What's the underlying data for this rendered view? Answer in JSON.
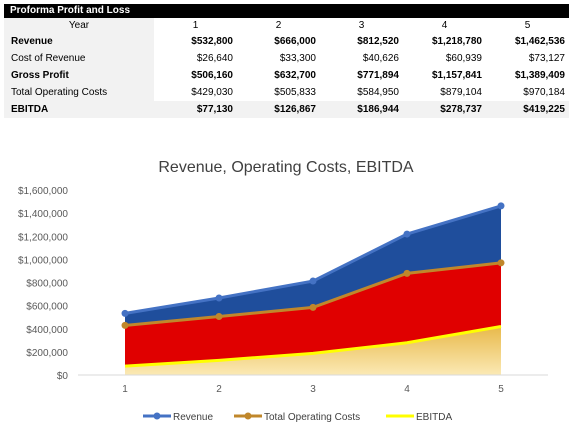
{
  "table": {
    "title": "Proforma Profit and Loss",
    "year_label": "Year",
    "years": [
      "1",
      "2",
      "3",
      "4",
      "5"
    ],
    "rows": [
      {
        "label": "Revenue",
        "bold": true,
        "values": [
          "$532,800",
          "$666,000",
          "$812,520",
          "$1,218,780",
          "$1,462,536"
        ]
      },
      {
        "label": "Cost of Revenue",
        "bold": false,
        "values": [
          "$26,640",
          "$33,300",
          "$40,626",
          "$60,939",
          "$73,127"
        ]
      },
      {
        "label": "Gross Profit",
        "bold": true,
        "values": [
          "$506,160",
          "$632,700",
          "$771,894",
          "$1,157,841",
          "$1,389,409"
        ]
      },
      {
        "label": "Total Operating Costs",
        "bold": false,
        "values": [
          "$429,030",
          "$505,833",
          "$584,950",
          "$879,104",
          "$970,184"
        ]
      },
      {
        "label": "EBITDA",
        "bold": true,
        "values": [
          "$77,130",
          "$126,867",
          "$186,944",
          "$278,737",
          "$419,225"
        ]
      }
    ]
  },
  "chart_data": {
    "type": "area",
    "title": "Revenue, Operating Costs, EBITDA",
    "categories": [
      "1",
      "2",
      "3",
      "4",
      "5"
    ],
    "x": [
      1,
      2,
      3,
      4,
      5
    ],
    "series": [
      {
        "name": "Revenue",
        "values": [
          532800,
          666000,
          812520,
          1218780,
          1462536
        ],
        "line_color": "#4472c4",
        "fill_color": "#1f4e9c",
        "marker": true
      },
      {
        "name": "Total Operating Costs",
        "values": [
          429030,
          505833,
          584950,
          879104,
          970184
        ],
        "line_color": "#c0872b",
        "fill_color": "#e00000",
        "marker": true
      },
      {
        "name": "EBITDA",
        "values": [
          77130,
          126867,
          186944,
          278737,
          419225
        ],
        "line_color": "#ffff00",
        "fill_color": "#f2cf72",
        "marker": false
      }
    ],
    "ylim": [
      0,
      1600000
    ],
    "yticks": [
      "$0",
      "$200,000",
      "$400,000",
      "$600,000",
      "$800,000",
      "$1,000,000",
      "$1,200,000",
      "$1,400,000",
      "$1,600,000"
    ],
    "ytick_values": [
      0,
      200000,
      400000,
      600000,
      800000,
      1000000,
      1200000,
      1400000,
      1600000
    ],
    "grid": false,
    "legend": "bottom"
  }
}
